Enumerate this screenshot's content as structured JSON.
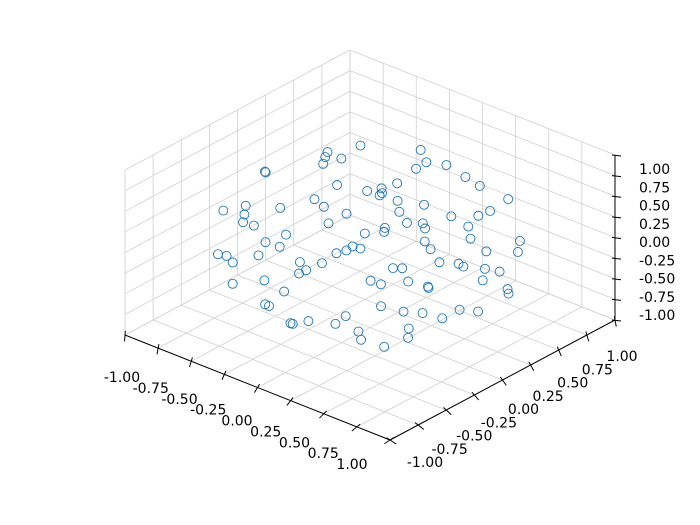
{
  "chart_data": {
    "type": "scatter3d",
    "xlim": [
      -1,
      1
    ],
    "ylim": [
      -1,
      1
    ],
    "zlim": [
      -1,
      1
    ],
    "xticks": [
      {
        "value": -1,
        "label": "-1.00"
      },
      {
        "value": -0.75,
        "label": "-0.75"
      },
      {
        "value": -0.5,
        "label": "-0.50"
      },
      {
        "value": -0.25,
        "label": "-0.25"
      },
      {
        "value": 0,
        "label": "0.00"
      },
      {
        "value": 0.25,
        "label": "0.25"
      },
      {
        "value": 0.5,
        "label": "0.50"
      },
      {
        "value": 0.75,
        "label": "0.75"
      },
      {
        "value": 1,
        "label": "1.00"
      }
    ],
    "yticks": [
      {
        "value": -1,
        "label": "-1.00"
      },
      {
        "value": -0.75,
        "label": "-0.75"
      },
      {
        "value": -0.5,
        "label": "-0.50"
      },
      {
        "value": -0.25,
        "label": "-0.25"
      },
      {
        "value": 0,
        "label": "0.00"
      },
      {
        "value": 0.25,
        "label": "0.25"
      },
      {
        "value": 0.5,
        "label": "0.50"
      },
      {
        "value": 0.75,
        "label": "0.75"
      },
      {
        "value": 1,
        "label": "1.00"
      }
    ],
    "zticks": [
      {
        "value": -1,
        "label": "-1.00"
      },
      {
        "value": -0.75,
        "label": "-0.75"
      },
      {
        "value": -0.5,
        "label": "-0.50"
      },
      {
        "value": -0.25,
        "label": "-0.25"
      },
      {
        "value": 0,
        "label": "0.00"
      },
      {
        "value": 0.25,
        "label": "0.25"
      },
      {
        "value": 0.5,
        "label": "0.50"
      },
      {
        "value": 0.75,
        "label": "0.75"
      },
      {
        "value": 1,
        "label": "1.00"
      }
    ],
    "grid": true,
    "marker": "open-circle",
    "color": "#1f77b4",
    "x": [
      0.12,
      -0.54,
      0.63,
      -0.18,
      0.33,
      -0.71,
      0.05,
      0.48,
      -0.36,
      0.77,
      -0.09,
      0.21,
      -0.62,
      0.58,
      -0.25,
      0.41,
      -0.83,
      0.14,
      -0.44,
      0.69,
      0.02,
      -0.31,
      0.27,
      -0.12,
      0.52,
      -0.58,
      0.35,
      -0.72,
      0.86,
      -0.05,
      0.18,
      -0.41,
      0.61,
      -0.22,
      0.08,
      -0.66,
      0.44,
      -0.15,
      0.72,
      -0.49,
      0.29,
      -0.87,
      0.11,
      -0.34,
      0.56,
      0.24,
      -0.52,
      0.38,
      -0.08,
      0.15,
      -0.28,
      0.81,
      -0.61,
      0.46,
      -0.19,
      0.66,
      -0.45,
      0.07,
      0.32,
      -0.76,
      0.51,
      -0.11,
      0.25,
      -0.38,
      0.74,
      -0.57,
      0.19,
      -0.26,
      0.43,
      -0.02,
      0.59,
      -0.69,
      0.36,
      -0.42,
      0.03,
      0.88,
      -0.16,
      0.27,
      -0.81,
      0.13,
      -0.33,
      0.68,
      -0.47,
      0.22,
      -0.14,
      0.54,
      -0.64,
      0.09,
      0.47,
      -0.23,
      0.31,
      -0.55,
      0.79,
      -0.39,
      0.17,
      -0.06,
      0.62,
      -0.74,
      0.04,
      -0.27
    ],
    "y": [
      -0.35,
      0.22,
      0.41,
      -0.72,
      0.15,
      -0.28,
      0.62,
      -0.56,
      0.55,
      -0.12,
      -0.11,
      0.82,
      -0.49,
      0.28,
      0.04,
      -0.79,
      0.18,
      0.35,
      -0.61,
      0.52,
      -0.45,
      0.34,
      -0.22,
      0.47,
      0.03,
      0.06,
      0.61,
      0.45,
      0.21,
      -0.88,
      -0.08,
      -0.32,
      -0.38,
      0.76,
      0.11,
      -0.15,
      0.71,
      -0.51,
      -0.55,
      0.68,
      -0.64,
      -0.08,
      0.28,
      -0.82,
      -0.17,
      0.44,
      -0.42,
      -0.35,
      0.18,
      -0.28,
      0.81,
      0.08,
      0.35,
      0.46,
      -0.27,
      -0.31,
      0.12,
      -0.63,
      0.24,
      -0.38,
      -0.68,
      0.58,
      0.05,
      -0.12,
      0.36,
      -0.68,
      0.67,
      -0.44,
      -0.02,
      0.31,
      0.62,
      0.52,
      -0.47,
      0.41,
      -0.19,
      -0.24,
      -0.74,
      0.53,
      0.02,
      -0.86,
      0.63,
      0.16,
      -0.21,
      0.21,
      0.08,
      -0.51,
      -0.55,
      0.87,
      0.32,
      -0.36,
      -0.12,
      0.27,
      -0.41,
      0.72,
      -0.41,
      0.41,
      0.1,
      -0.12,
      0.06,
      -0.58
    ],
    "z": [
      0.71,
      0.48,
      -0.22,
      -0.31,
      0.05,
      0.12,
      0.55,
      0.28,
      -0.47,
      0.35,
      -0.84,
      -0.05,
      -0.25,
      0.52,
      0.86,
      -0.12,
      -0.21,
      -0.67,
      0.44,
      0.11,
      0.12,
      0.21,
      -0.41,
      -0.15,
      -0.58,
      -0.62,
      -0.51,
      0.28,
      -0.14,
      0.18,
      0.38,
      -0.05,
      -0.46,
      0.31,
      -0.31,
      0.57,
      0.32,
      -0.68,
      0.05,
      -0.12,
      0.55,
      -0.02,
      0.79,
      -0.09,
      0.68,
      0.18,
      0.21,
      0.02,
      0.42,
      -0.75,
      -0.28,
      0.38,
      -0.38,
      -0.47,
      0.63,
      -0.18,
      0.09,
      -0.42,
      -0.18,
      -0.34,
      -0.33,
      0.66,
      -0.89,
      -0.46,
      -0.38,
      0.02,
      -0.29,
      0.28,
      0.33,
      -0.52,
      -0.16,
      -0.09,
      0.71,
      0.64,
      0.14,
      -0.05,
      0.47,
      0.61,
      0.36,
      -0.24,
      0.08,
      -0.49,
      -0.71,
      0.25,
      -0.19,
      -0.52,
      0.41,
      0.14,
      0.29,
      -0.23,
      0.82,
      0.58,
      0.28,
      -0.37,
      0.34,
      -0.78,
      0.06,
      -0.51,
      0.61,
      -0.49
    ]
  }
}
